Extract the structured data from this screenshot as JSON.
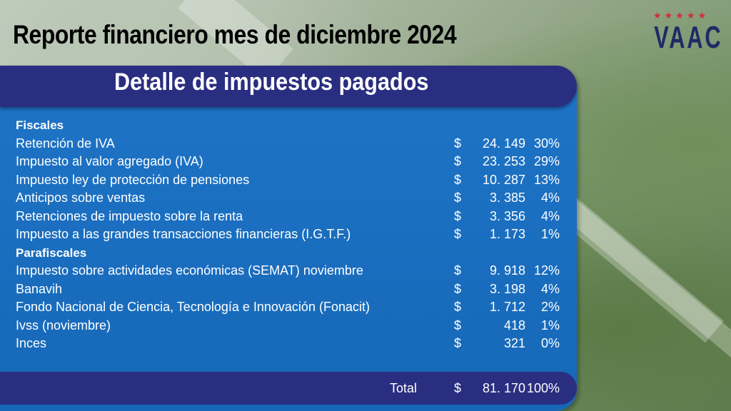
{
  "header": {
    "title": "Reporte financiero mes de diciembre 2024",
    "logo": {
      "text": "VAAC",
      "stars": "★★★★★"
    }
  },
  "panel": {
    "subtitle": "Detalle de impuestos pagados",
    "sections": [
      {
        "name": "Fiscales",
        "rows": [
          {
            "label": "Retención de IVA",
            "currency": "$",
            "amount": "24. 149",
            "percent": "30%"
          },
          {
            "label": "Impuesto al valor agregado (IVA)",
            "currency": "$",
            "amount": "23. 253",
            "percent": "29%"
          },
          {
            "label": "Impuesto ley de protección de pensiones",
            "currency": "$",
            "amount": "10. 287",
            "percent": "13%"
          },
          {
            "label": "Anticipos sobre ventas",
            "currency": "$",
            "amount": "3. 385",
            "percent": "4%"
          },
          {
            "label": "Retenciones de impuesto sobre la renta",
            "currency": "$",
            "amount": "3. 356",
            "percent": "4%"
          },
          {
            "label": "Impuesto a las grandes transacciones financieras (I.G.T.F.)",
            "currency": "$",
            "amount": "1.  173",
            "percent": "1%"
          }
        ]
      },
      {
        "name": "Parafiscales",
        "rows": [
          {
            "label": "Impuesto sobre actividades económicas (SEMAT) noviembre",
            "currency": "$",
            "amount": "9. 918",
            "percent": "12%"
          },
          {
            "label": "Banavih",
            "currency": "$",
            "amount": "3. 198",
            "percent": "4%"
          },
          {
            "label": "Fondo Nacional de Ciencia, Tecnología e Innovación (Fonacit)",
            "currency": "$",
            "amount": "1.  712",
            "percent": "2%"
          },
          {
            "label": "Ivss (noviembre)",
            "currency": "$",
            "amount": "418",
            "percent": "1%"
          },
          {
            "label": "Inces",
            "currency": "$",
            "amount": "321",
            "percent": "0%"
          }
        ]
      }
    ],
    "total": {
      "label": "Total",
      "currency": "$",
      "amount": "81. 170",
      "percent": "100%"
    }
  },
  "colors": {
    "panel_blue": "#1f74c7",
    "bar_navy": "#2a2e80",
    "logo_navy": "#1f2a66",
    "logo_red": "#d22c3c"
  }
}
